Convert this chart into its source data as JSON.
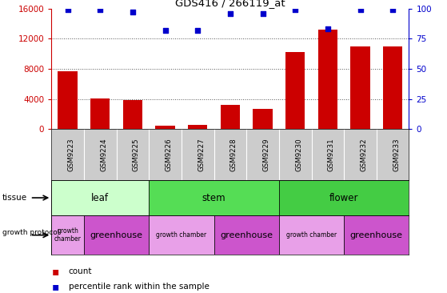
{
  "title": "GDS416 / 266119_at",
  "samples": [
    "GSM9223",
    "GSM9224",
    "GSM9225",
    "GSM9226",
    "GSM9227",
    "GSM9228",
    "GSM9229",
    "GSM9230",
    "GSM9231",
    "GSM9232",
    "GSM9233"
  ],
  "counts": [
    7700,
    4050,
    3800,
    450,
    550,
    3200,
    2700,
    10200,
    13200,
    11000,
    11000
  ],
  "percentiles": [
    99,
    99,
    97,
    82,
    82,
    96,
    96,
    99,
    83,
    99,
    99
  ],
  "ylim_left": [
    0,
    16000
  ],
  "ylim_right": [
    0,
    100
  ],
  "yticks_left": [
    0,
    4000,
    8000,
    12000,
    16000
  ],
  "yticks_right": [
    0,
    25,
    50,
    75,
    100
  ],
  "bar_color": "#cc0000",
  "dot_color": "#0000cc",
  "tissue_groups": [
    {
      "label": "leaf",
      "start": 0,
      "end": 3,
      "color": "#ccffcc"
    },
    {
      "label": "stem",
      "start": 3,
      "end": 7,
      "color": "#55dd55"
    },
    {
      "label": "flower",
      "start": 7,
      "end": 11,
      "color": "#44cc44"
    }
  ],
  "protocol_groups": [
    {
      "label": "growth\nchamber",
      "start": 0,
      "end": 1,
      "chamber": true
    },
    {
      "label": "greenhouse",
      "start": 1,
      "end": 3,
      "chamber": false
    },
    {
      "label": "growth chamber",
      "start": 3,
      "end": 5,
      "chamber": true
    },
    {
      "label": "greenhouse",
      "start": 5,
      "end": 7,
      "chamber": false
    },
    {
      "label": "growth chamber",
      "start": 7,
      "end": 9,
      "chamber": true
    },
    {
      "label": "greenhouse",
      "start": 9,
      "end": 11,
      "chamber": false
    }
  ],
  "chamber_color": "#e8a0e8",
  "greenhouse_color": "#cc55cc",
  "bg_color": "#ffffff",
  "grid_color": "#555555",
  "sample_bg_color": "#cccccc"
}
